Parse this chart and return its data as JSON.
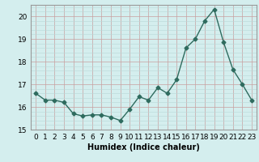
{
  "x": [
    0,
    1,
    2,
    3,
    4,
    5,
    6,
    7,
    8,
    9,
    10,
    11,
    12,
    13,
    14,
    15,
    16,
    17,
    18,
    19,
    20,
    21,
    22,
    23
  ],
  "y": [
    16.6,
    16.3,
    16.3,
    16.2,
    15.7,
    15.6,
    15.65,
    15.65,
    15.55,
    15.4,
    15.9,
    16.45,
    16.3,
    16.85,
    16.6,
    17.2,
    18.6,
    19.0,
    19.8,
    20.3,
    18.85,
    17.65,
    17.0,
    16.3
  ],
  "line_color": "#2e6b5e",
  "marker": "D",
  "marker_size": 2.5,
  "linewidth": 1.0,
  "background_color": "#d4eeee",
  "grid_major_color": "#c8a0a0",
  "grid_minor_color": "#b8d8d8",
  "xlabel": "Humidex (Indice chaleur)",
  "xlabel_fontsize": 7,
  "tick_fontsize": 6.5,
  "ylim": [
    15,
    20.5
  ],
  "xlim": [
    -0.5,
    23.5
  ],
  "yticks": [
    15,
    16,
    17,
    18,
    19,
    20
  ],
  "xticks": [
    0,
    1,
    2,
    3,
    4,
    5,
    6,
    7,
    8,
    9,
    10,
    11,
    12,
    13,
    14,
    15,
    16,
    17,
    18,
    19,
    20,
    21,
    22,
    23
  ]
}
